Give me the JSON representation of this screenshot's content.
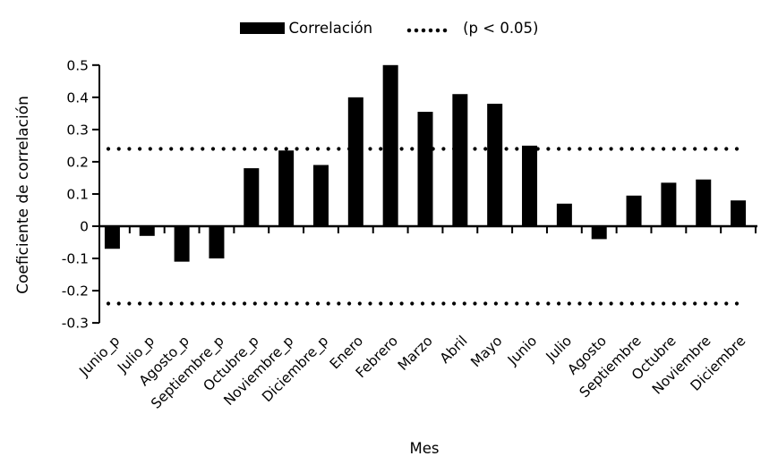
{
  "legend": {
    "series_label": "Correlación",
    "threshold_label": "(p < 0.05)"
  },
  "axes": {
    "y_title": "Coeficiente de correlación",
    "x_title": "Mes",
    "y_ticks": [
      "0.5",
      "0.4",
      "0.3",
      "0.2",
      "0.1",
      "0",
      "-0.1",
      "-0.2",
      "-0.3"
    ]
  },
  "chart_data": {
    "type": "bar",
    "title": "",
    "xlabel": "Mes",
    "ylabel": "Coeficiente de correlación",
    "categories": [
      "Junio_p",
      "Julio_p",
      "Agosto_p",
      "Septiembre_p",
      "Octubre_p",
      "Noviembre_p",
      "Diciembre_p",
      "Enero",
      "Febrero",
      "Marzo",
      "Abril",
      "Mayo",
      "Junio",
      "Julio",
      "Agosto",
      "Septiembre",
      "Octubre",
      "Noviembre",
      "Diciembre"
    ],
    "values": [
      -0.07,
      -0.03,
      -0.11,
      -0.1,
      0.18,
      0.235,
      0.19,
      0.4,
      0.5,
      0.355,
      0.41,
      0.38,
      0.25,
      0.07,
      -0.04,
      0.095,
      0.135,
      0.145,
      0.08
    ],
    "ylim": [
      -0.3,
      0.5
    ],
    "y_tick_step": 0.1,
    "threshold_lines": [
      0.24,
      -0.24
    ],
    "threshold_label": "(p < 0.05)",
    "series_name": "Correlación",
    "bar_color": "#000000",
    "threshold_style": "dotted",
    "background_color": "#ffffff",
    "grid": false,
    "legend_position": "top-center",
    "x_tick_label_rotation_deg": -45
  }
}
